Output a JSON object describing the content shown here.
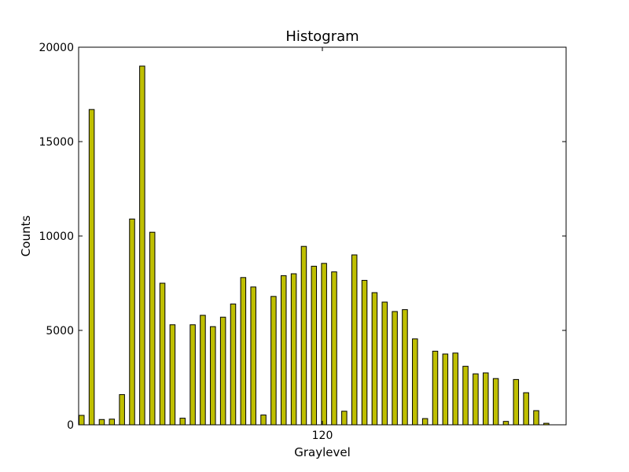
{
  "chart_data": {
    "type": "bar",
    "title": "Histogram",
    "xlabel": "Graylevel",
    "ylabel": "Counts",
    "ylim": [
      0,
      20000
    ],
    "yticks": [
      "0",
      "5000",
      "10000",
      "15000",
      "20000"
    ],
    "xticks": [
      "120"
    ],
    "xlim": [
      0,
      240
    ],
    "grid": false,
    "bar_color": "#bfbf00",
    "edge_color": "#000000",
    "values": [
      500,
      16700,
      280,
      300,
      1600,
      10900,
      19000,
      10200,
      7500,
      5300,
      350,
      5300,
      5800,
      5200,
      5700,
      6400,
      7800,
      7300,
      520,
      6800,
      7900,
      8000,
      9450,
      8400,
      8550,
      8100,
      720,
      9000,
      7650,
      7000,
      6500,
      6000,
      6100,
      4550,
      330,
      3900,
      3750,
      3800,
      3100,
      2700,
      2750,
      2450,
      180,
      2400,
      1700,
      750,
      80
    ]
  }
}
